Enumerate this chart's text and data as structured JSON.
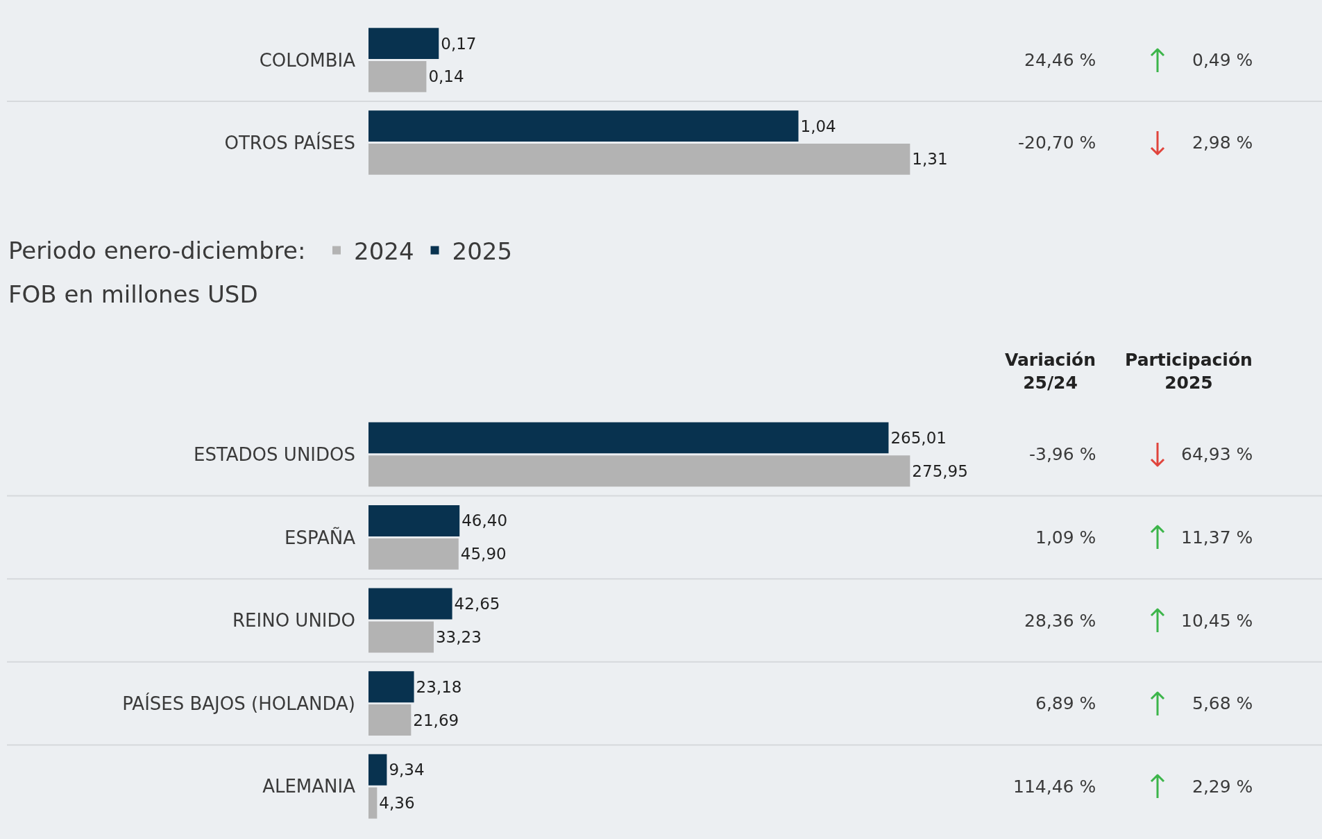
{
  "chart_data": [
    {
      "type": "bar",
      "orientation": "horizontal",
      "legend": false,
      "categories": [
        "COLOMBIA",
        "OTROS PAÍSES"
      ],
      "series": [
        {
          "color": "#b3b3b3",
          "values": [
            0.14,
            1.31
          ],
          "value_labels": [
            "0,14",
            "1,31"
          ]
        },
        {
          "color": "#08324f",
          "values": [
            0.17,
            1.04
          ],
          "value_labels": [
            "0,17",
            "1,04"
          ]
        }
      ],
      "annotations": [
        "24,46 %",
        "0,49 %",
        "-20,70 %",
        "2,98 %"
      ]
    },
    {
      "type": "bar",
      "orientation": "horizontal",
      "legend": "top left",
      "legend_title": "Periodo enero-diciembre:",
      "subtitle": "FOB en millones USD",
      "categories": [
        "ESTADOS UNIDOS",
        "ESPAÑA",
        "REINO UNIDO",
        "PAÍSES BAJOS (HOLANDA)",
        "ALEMANIA"
      ],
      "series": [
        {
          "name": "2024",
          "color": "#b3b3b3",
          "values": [
            275.95,
            45.9,
            33.23,
            21.69,
            4.36
          ],
          "value_labels": [
            "275,95",
            "45,90",
            "33,23",
            "21,69",
            "4,36"
          ]
        },
        {
          "name": "2025",
          "color": "#08324f",
          "values": [
            265.01,
            46.4,
            42.65,
            23.18,
            9.34
          ],
          "value_labels": [
            "265,01",
            "46,40",
            "42,65",
            "23,18",
            "9,34"
          ]
        }
      ],
      "annotations": [
        "Variación\n25/24",
        "Participación\n2025",
        "-3,96 %",
        "64,93 %",
        "1,09 %",
        "11,37 %",
        "28,36 %",
        "10,45 %",
        "6,89 %",
        "5,68 %",
        "114,46 %",
        "2,29 %"
      ]
    }
  ]
}
